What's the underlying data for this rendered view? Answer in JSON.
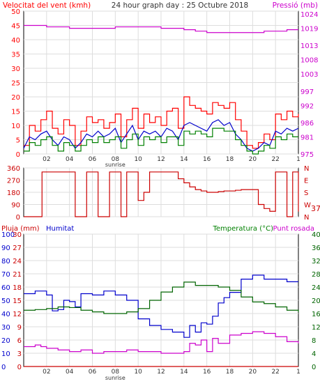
{
  "header": {
    "left_label": "Velocitat del vent (kmh)",
    "title": "24 hour graph day : 25 Octubre 2018",
    "right_label": "Pressió (mb)"
  },
  "bottom_header": {
    "rain_label": "Pluja (mm)",
    "humidity_label": "Humitat",
    "temp_label": "Temperatura (°C)",
    "dew_label": "Punt rosada"
  },
  "colors": {
    "gust": "#ff0000",
    "wind": "#0000cc",
    "windavg": "#008000",
    "pressure": "#cc00cc",
    "direction": "#cc0000",
    "humidity": "#0000cc",
    "temperature": "#006400",
    "dew": "#cc00cc",
    "rain": "#cc0000",
    "grid": "#dddddd"
  },
  "chart_data": [
    {
      "type": "line",
      "name": "wind-speed-pressure",
      "x_ticks": [
        "02",
        "04",
        "06",
        "08",
        "10",
        "12",
        "14",
        "16",
        "18",
        "20",
        "22"
      ],
      "x_extra_label": "sunrise",
      "ylim": [
        0,
        50
      ],
      "y_ticks": [
        0,
        5,
        10,
        15,
        20,
        25,
        30,
        35,
        40,
        45,
        50
      ],
      "y2lim": [
        975,
        1025
      ],
      "y2_ticks": [
        975,
        981,
        986,
        992,
        997,
        1003,
        1008,
        1013,
        1019,
        1024
      ],
      "series": [
        {
          "name": "gust",
          "x": [
            0,
            0.5,
            1,
            1.5,
            2,
            2.5,
            3,
            3.5,
            4,
            4.5,
            5,
            5.5,
            6,
            6.5,
            7,
            7.5,
            8,
            8.5,
            9,
            9.5,
            10,
            10.5,
            11,
            11.5,
            12,
            12.5,
            13,
            13.5,
            14,
            14.5,
            15,
            15.5,
            16,
            16.5,
            17,
            17.5,
            18,
            18.5,
            19,
            19.5,
            20,
            20.5,
            21,
            21.5,
            22,
            22.5,
            23,
            23.5,
            24
          ],
          "values": [
            3,
            10,
            8,
            12,
            15,
            9,
            7,
            12,
            10,
            3,
            8,
            13,
            11,
            12,
            9,
            11,
            14,
            6,
            12,
            16,
            9,
            14,
            11,
            13,
            10,
            15,
            16,
            9,
            20,
            17,
            16,
            15,
            14,
            18,
            17,
            16,
            18,
            12,
            8,
            3,
            2,
            4,
            7,
            5,
            14,
            12,
            15,
            13,
            14
          ]
        },
        {
          "name": "wind",
          "x": [
            0,
            0.5,
            1,
            1.5,
            2,
            2.5,
            3,
            3.5,
            4,
            4.5,
            5,
            5.5,
            6,
            6.5,
            7,
            7.5,
            8,
            8.5,
            9,
            9.5,
            10,
            10.5,
            11,
            11.5,
            12,
            12.5,
            13,
            13.5,
            14,
            14.5,
            15,
            15.5,
            16,
            16.5,
            17,
            17.5,
            18,
            18.5,
            19,
            19.5,
            20,
            20.5,
            21,
            21.5,
            22,
            22.5,
            23,
            23.5,
            24
          ],
          "values": [
            2,
            6,
            5,
            7,
            8,
            5,
            3,
            6,
            5,
            2,
            4,
            7,
            6,
            8,
            6,
            7,
            9,
            4,
            7,
            10,
            5,
            8,
            7,
            8,
            6,
            9,
            8,
            5,
            10,
            11,
            10,
            9,
            8,
            11,
            12,
            10,
            11,
            7,
            5,
            2,
            1,
            2,
            4,
            3,
            8,
            7,
            9,
            8,
            9
          ]
        },
        {
          "name": "windavg",
          "x": [
            0,
            0.5,
            1,
            1.5,
            2,
            2.5,
            3,
            3.5,
            4,
            4.5,
            5,
            5.5,
            6,
            6.5,
            7,
            7.5,
            8,
            8.5,
            9,
            9.5,
            10,
            10.5,
            11,
            11.5,
            12,
            12.5,
            13,
            13.5,
            14,
            14.5,
            15,
            15.5,
            16,
            16.5,
            17,
            17.5,
            18,
            18.5,
            19,
            19.5,
            20,
            20.5,
            21,
            21.5,
            22,
            22.5,
            23,
            23.5,
            24
          ],
          "values": [
            1,
            4,
            3,
            5,
            6,
            3,
            1,
            4,
            3,
            1,
            3,
            5,
            4,
            6,
            4,
            5,
            6,
            2,
            5,
            7,
            3,
            6,
            5,
            6,
            4,
            6,
            6,
            3,
            8,
            7,
            8,
            7,
            6,
            9,
            9,
            8,
            8,
            5,
            3,
            1,
            0,
            1,
            3,
            2,
            6,
            5,
            7,
            6,
            6
          ]
        },
        {
          "name": "pressure",
          "axis": "y2",
          "x": [
            0,
            1,
            2,
            3,
            4,
            5,
            6,
            7,
            8,
            9,
            10,
            11,
            12,
            13,
            14,
            15,
            16,
            17,
            18,
            19,
            20,
            21,
            22,
            23,
            24
          ],
          "values": [
            1020,
            1020,
            1019.5,
            1019.5,
            1019,
            1019,
            1019,
            1019,
            1019.5,
            1019.5,
            1019.5,
            1019.5,
            1019,
            1019,
            1018.5,
            1018,
            1017.5,
            1017.5,
            1017.5,
            1017.5,
            1017.5,
            1018,
            1018,
            1018.5,
            1018.5
          ]
        }
      ]
    },
    {
      "type": "line",
      "name": "wind-direction",
      "ylim": [
        0,
        360
      ],
      "y_ticks": [
        0,
        90,
        180,
        270,
        360
      ],
      "y2_labels": [
        "N",
        "W",
        "S",
        "E",
        "N"
      ],
      "current_value": "37",
      "series": [
        {
          "name": "direction",
          "x": [
            0,
            0.5,
            1,
            1.5,
            1.6,
            2,
            2.5,
            3,
            3.5,
            4,
            4.5,
            5,
            5.5,
            6,
            6.5,
            7,
            7.5,
            8,
            8.5,
            9,
            9.5,
            10,
            10.5,
            11,
            11.5,
            12,
            12.5,
            13,
            13.5,
            14,
            14.5,
            15,
            15.5,
            16,
            16.5,
            17,
            17.5,
            18,
            18.5,
            19,
            19.5,
            20,
            20.5,
            21,
            21.5,
            22,
            22.5,
            23,
            23.5,
            24
          ],
          "values": [
            0,
            0,
            0,
            0,
            330,
            330,
            330,
            330,
            330,
            330,
            0,
            0,
            330,
            330,
            0,
            0,
            330,
            330,
            0,
            330,
            330,
            120,
            180,
            330,
            330,
            330,
            330,
            330,
            280,
            250,
            220,
            200,
            190,
            180,
            180,
            185,
            190,
            190,
            195,
            200,
            200,
            200,
            90,
            60,
            40,
            330,
            330,
            0,
            330,
            37
          ]
        }
      ]
    },
    {
      "type": "line",
      "name": "temperature-humidity-rain",
      "x_ticks": [
        "02",
        "04",
        "06",
        "08",
        "10",
        "12",
        "14",
        "16",
        "18",
        "20",
        "22"
      ],
      "x_extra_label": "sunrise",
      "ylim_rain": [
        0,
        30
      ],
      "y_rain_ticks": [
        0,
        3,
        6,
        9,
        12,
        15,
        18,
        21,
        24,
        27,
        30
      ],
      "ylim_humidity": [
        0,
        100
      ],
      "y_humidity_ticks": [
        0,
        10,
        20,
        30,
        40,
        50,
        60,
        70,
        80,
        90,
        100
      ],
      "ylim_temp": [
        0,
        40
      ],
      "y_temp_ticks": [
        0,
        4,
        8,
        12,
        16,
        20,
        24,
        28,
        32,
        36,
        40
      ],
      "series": [
        {
          "name": "humidity",
          "x": [
            0,
            1,
            2,
            2.5,
            3,
            3.5,
            4,
            4.5,
            5,
            6,
            7,
            8,
            9,
            10,
            11,
            12,
            13,
            14,
            14.5,
            15,
            15.5,
            16,
            16.5,
            17,
            17.5,
            18,
            19,
            20,
            21,
            22,
            23,
            24
          ],
          "values": [
            55,
            57,
            54,
            42,
            43,
            50,
            49,
            45,
            55,
            54,
            57,
            54,
            50,
            36,
            31,
            28,
            26,
            22,
            31,
            26,
            33,
            32,
            38,
            48,
            52,
            56,
            66,
            69,
            66,
            66,
            64,
            64
          ]
        },
        {
          "name": "temperature",
          "x": [
            0,
            1,
            2,
            3,
            4,
            5,
            6,
            7,
            8,
            9,
            10,
            11,
            12,
            13,
            14,
            15,
            16,
            17,
            18,
            19,
            20,
            21,
            22,
            23,
            24
          ],
          "values": [
            17,
            17.2,
            17.5,
            18,
            17.8,
            17,
            16.5,
            16,
            16,
            16.5,
            17.5,
            20,
            22.5,
            24,
            25.5,
            24.5,
            24.5,
            24,
            23,
            21,
            19.5,
            19,
            18,
            17,
            16.5
          ]
        },
        {
          "name": "dew",
          "x": [
            0,
            1,
            1.5,
            2,
            3,
            4,
            5,
            6,
            7,
            8,
            9,
            10,
            11,
            12,
            13,
            14,
            14.5,
            15,
            15.5,
            16,
            16.5,
            17,
            18,
            19,
            20,
            21,
            22,
            23,
            24
          ],
          "values": [
            6,
            6.5,
            6,
            5.5,
            5,
            4.5,
            5,
            4,
            4.5,
            4.5,
            5,
            4.5,
            4.5,
            4,
            4,
            4.5,
            7,
            6.5,
            8,
            4.5,
            8.5,
            7,
            9.5,
            10,
            10.5,
            10,
            9,
            7.5,
            7
          ]
        },
        {
          "name": "rain",
          "x": [
            0,
            24
          ],
          "values": [
            0,
            0
          ]
        }
      ]
    }
  ]
}
